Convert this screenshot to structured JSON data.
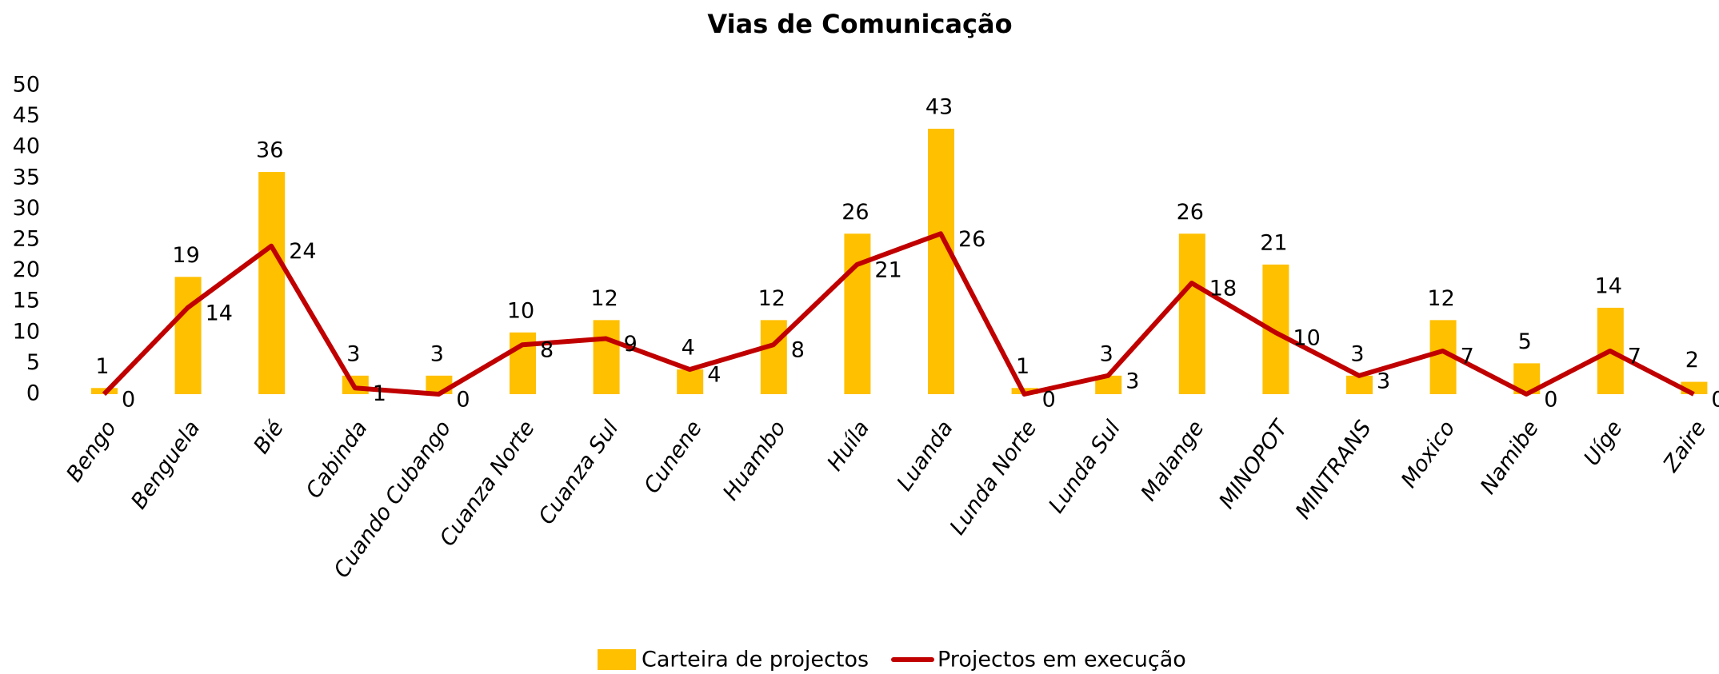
{
  "chart_data": {
    "type": "bar_line",
    "title": "Vias de Comunicação",
    "categories": [
      "Bengo",
      "Benguela",
      "Bié",
      "Cabinda",
      "Cuando Cubango",
      "Cuanza Norte",
      "Cuanza Sul",
      "Cunene",
      "Huambo",
      "Huíla",
      "Luanda",
      "Lunda Norte",
      "Lunda Sul",
      "Malange",
      "MINOPOT",
      "MINTRANS",
      "Moxico",
      "Namibe",
      "Uíge",
      "Zaire"
    ],
    "series": [
      {
        "name": "Carteira de projectos",
        "type": "bar",
        "color": "#FFC000",
        "values": [
          1,
          19,
          36,
          3,
          3,
          10,
          12,
          4,
          12,
          26,
          43,
          1,
          3,
          26,
          21,
          3,
          12,
          5,
          14,
          2
        ]
      },
      {
        "name": "Projectos em execução",
        "type": "line",
        "color": "#C00000",
        "values": [
          0,
          14,
          24,
          1,
          0,
          8,
          9,
          4,
          8,
          21,
          26,
          0,
          3,
          18,
          10,
          3,
          7,
          0,
          7,
          0
        ]
      }
    ],
    "ylim": [
      0,
      50
    ],
    "yticks": [
      0,
      5,
      10,
      15,
      20,
      25,
      30,
      35,
      40,
      45,
      50
    ],
    "grid": false,
    "legend": "bottom"
  }
}
